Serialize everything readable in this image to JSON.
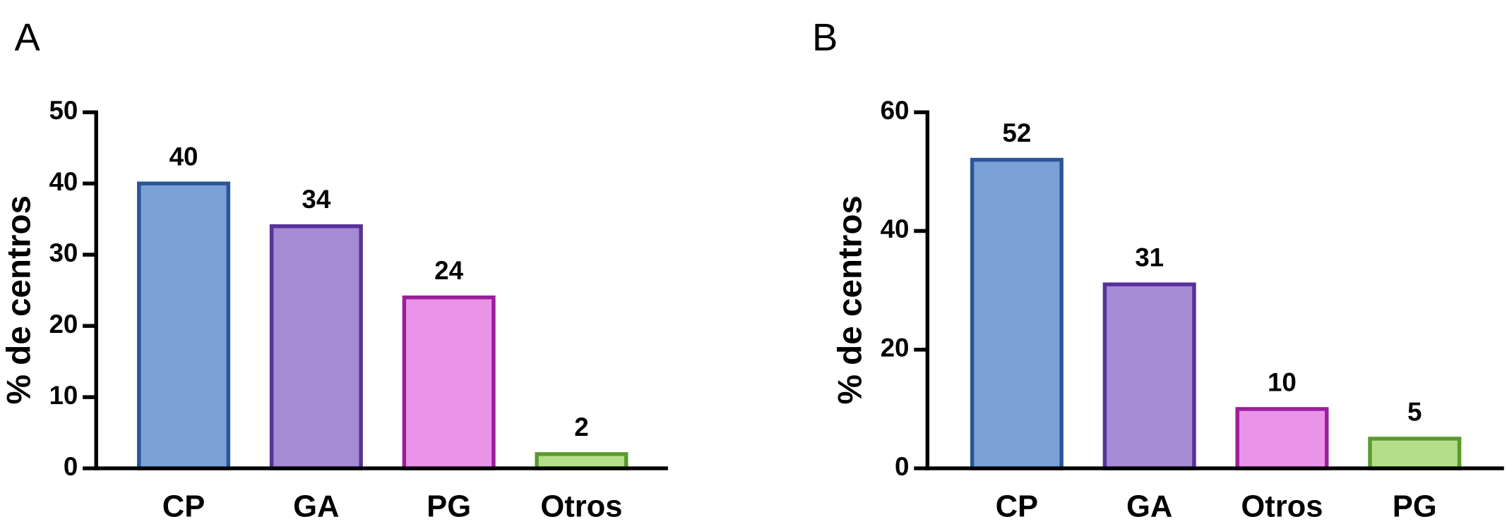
{
  "chart_data": [
    {
      "type": "bar",
      "panel_label": "A",
      "ylabel": "% de centros",
      "categories": [
        "CP",
        "GA",
        "PG",
        "Otros"
      ],
      "values": [
        40,
        34,
        24,
        2
      ],
      "colors": [
        "#7ba0d6",
        "#a58ad4",
        "#e994e8",
        "#b5de8a"
      ],
      "edge_colors": [
        "#2b5597",
        "#56329a",
        "#9b1e9b",
        "#5a9a2e"
      ],
      "ylim": [
        0,
        50
      ],
      "yticks": [
        0,
        10,
        20,
        30,
        40,
        50
      ]
    },
    {
      "type": "bar",
      "panel_label": "B",
      "ylabel": "% de centros",
      "categories": [
        "CP",
        "GA",
        "Otros",
        "PG"
      ],
      "values": [
        52,
        31,
        10,
        5
      ],
      "colors": [
        "#7ba0d6",
        "#a58ad4",
        "#e994e8",
        "#b5de8a"
      ],
      "edge_colors": [
        "#2b5597",
        "#56329a",
        "#9b1e9b",
        "#5a9a2e"
      ],
      "ylim": [
        0,
        60
      ],
      "yticks": [
        0,
        20,
        40,
        60
      ]
    }
  ]
}
